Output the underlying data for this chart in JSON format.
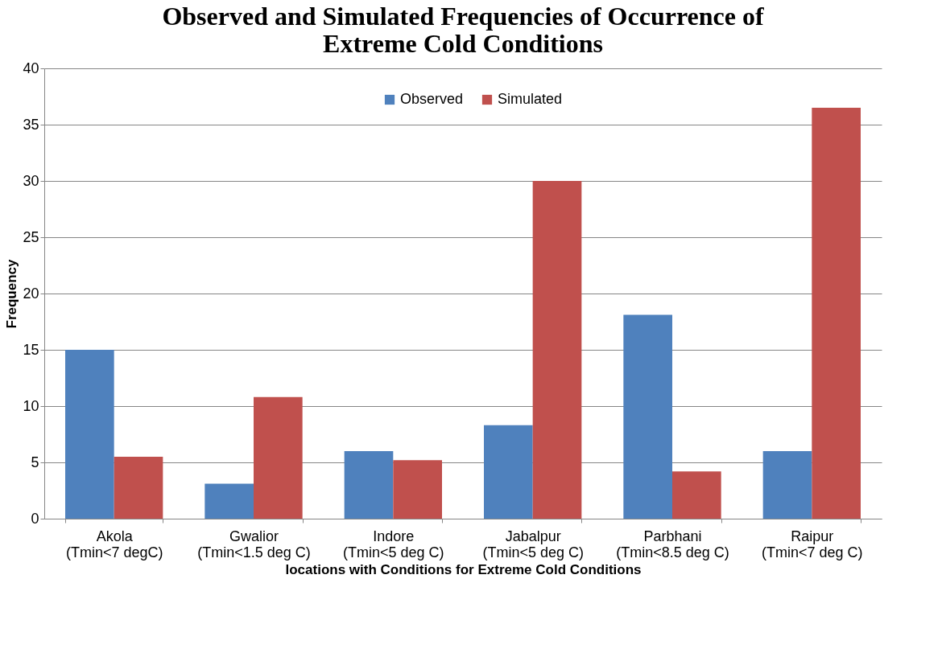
{
  "chart_data": {
    "type": "bar",
    "title": "Observed and Simulated Frequencies of Occurrence of Extreme Cold Conditions",
    "xlabel": "locations with Conditions for Extreme Cold Conditions",
    "ylabel": "Frequency",
    "categories": [
      "Akola\n(Tmin<7 degC)",
      "Gwalior\n(Tmin<1.5 deg C)",
      "Indore\n(Tmin<5 deg C)",
      "Jabalpur\n(Tmin<5 deg C)",
      "Parbhani\n(Tmin<8.5 deg C)",
      "Raipur\n(Tmin<7 deg C)"
    ],
    "series": [
      {
        "name": "Observed",
        "color": "#4f81bd",
        "values": [
          15,
          3.1,
          6,
          8.3,
          18.1,
          6
        ]
      },
      {
        "name": "Simulated",
        "color": "#c0504d",
        "values": [
          5.5,
          10.8,
          5.2,
          30,
          4.2,
          36.5
        ]
      }
    ],
    "ylim": [
      0,
      40
    ],
    "yticks": [
      0,
      5,
      10,
      15,
      20,
      25,
      30,
      35,
      40
    ],
    "grid": "y",
    "legend": "top"
  }
}
